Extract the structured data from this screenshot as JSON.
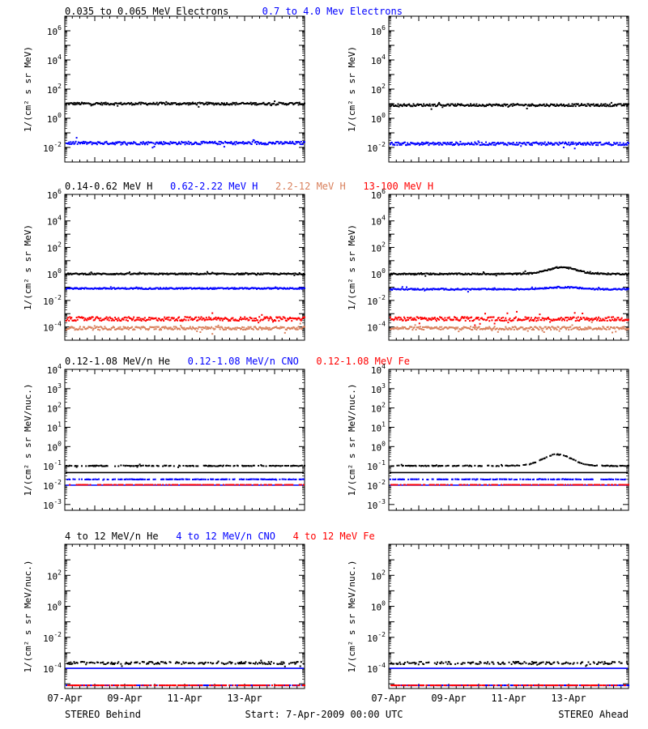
{
  "colors": {
    "black": "#000000",
    "blue": "#0000ff",
    "salmon": "#d9805c",
    "red": "#ff0000"
  },
  "footer": {
    "left": "STEREO Behind",
    "center": "Start:  7-Apr-2009 00:00 UTC",
    "right": "STEREO Ahead"
  },
  "x_tick_labels": [
    "07-Apr",
    "09-Apr",
    "11-Apr",
    "13-Apr"
  ],
  "chart_data": [
    {
      "type": "scatter",
      "row": 1,
      "y_scale": "log",
      "ylabel": "1/(cm² s sr MeV)",
      "ylim": [
        0.001,
        10000000
      ],
      "y_ticks": [
        {
          "exp": -2
        },
        {
          "exp": 0
        },
        {
          "exp": 2
        },
        {
          "exp": 4
        },
        {
          "exp": 6
        }
      ],
      "legend": [
        {
          "text": "0.035 to 0.065 MeV Electrons",
          "color": "black"
        },
        {
          "text": "0.7 to 4.0 Mev Electrons",
          "color": "blue"
        }
      ],
      "panels": {
        "behind": {
          "series": [
            {
              "color": "black",
              "level": 10,
              "spread": 0.08
            },
            {
              "color": "blue",
              "level": 0.02,
              "spread": 0.1
            }
          ]
        },
        "ahead": {
          "series": [
            {
              "color": "black",
              "level": 8,
              "spread": 0.08
            },
            {
              "color": "blue",
              "level": 0.018,
              "spread": 0.1
            }
          ]
        }
      }
    },
    {
      "type": "scatter",
      "row": 2,
      "y_scale": "log",
      "ylabel": "1/(cm² s sr MeV)",
      "ylim": [
        1e-05,
        1000000
      ],
      "y_ticks": [
        {
          "exp": -4
        },
        {
          "exp": -2
        },
        {
          "exp": 0
        },
        {
          "exp": 2
        },
        {
          "exp": 4
        },
        {
          "exp": 6
        }
      ],
      "legend": [
        {
          "text": "0.14-0.62 MeV H",
          "color": "black"
        },
        {
          "text": "0.62-2.22 MeV H",
          "color": "blue"
        },
        {
          "text": "2.2-12 MeV H",
          "color": "salmon"
        },
        {
          "text": "13-100 MeV H",
          "color": "red"
        }
      ],
      "panels": {
        "behind": {
          "series": [
            {
              "color": "black",
              "level": 1.0,
              "spread": 0.05
            },
            {
              "color": "blue",
              "level": 0.08,
              "spread": 0.05
            },
            {
              "color": "red",
              "level": 0.0004,
              "spread": 0.15
            },
            {
              "color": "salmon",
              "level": 8e-05,
              "spread": 0.12
            }
          ]
        },
        "ahead": {
          "series": [
            {
              "color": "black",
              "level": 1.0,
              "spread": 0.05,
              "bump": {
                "x": 0.72,
                "width": 0.12,
                "amp": 0.5
              }
            },
            {
              "color": "blue",
              "level": 0.07,
              "spread": 0.05,
              "bump": {
                "x": 0.72,
                "width": 0.14,
                "amp": 0.15
              }
            },
            {
              "color": "red",
              "level": 0.0004,
              "spread": 0.15
            },
            {
              "color": "salmon",
              "level": 8e-05,
              "spread": 0.12
            }
          ]
        }
      }
    },
    {
      "type": "scatter",
      "row": 3,
      "y_scale": "log",
      "ylabel": "1/(cm² s sr MeV/nuc.)",
      "ylim": [
        0.0005,
        10000
      ],
      "y_ticks": [
        {
          "exp": -3
        },
        {
          "exp": -2
        },
        {
          "exp": -1
        },
        {
          "exp": 0
        },
        {
          "exp": 1
        },
        {
          "exp": 2
        },
        {
          "exp": 3
        },
        {
          "exp": 4
        }
      ],
      "legend": [
        {
          "text": "0.12-1.08 MeV/n He",
          "color": "black"
        },
        {
          "text": "0.12-1.08 MeV/n CNO",
          "color": "blue"
        },
        {
          "text": "0.12-1.08 MeV Fe",
          "color": "red"
        }
      ],
      "panels": {
        "behind": {
          "series": [
            {
              "color": "black",
              "level": 0.1,
              "spread": 0.02,
              "sparse": true
            },
            {
              "color": "black",
              "level": 0.045,
              "spread": 0.0,
              "line": true
            },
            {
              "color": "blue",
              "level": 0.02,
              "spread": 0.01,
              "sparse": true
            },
            {
              "color": "blue",
              "level": 0.01,
              "spread": 0.0,
              "line": true
            },
            {
              "color": "red",
              "level": 0.0105,
              "spread": 0.0,
              "sparse": true
            }
          ]
        },
        "ahead": {
          "series": [
            {
              "color": "black",
              "level": 0.1,
              "spread": 0.02,
              "sparse": true,
              "bump": {
                "x": 0.7,
                "width": 0.12,
                "amp": 0.6
              }
            },
            {
              "color": "black",
              "level": 0.045,
              "spread": 0.0,
              "line": true
            },
            {
              "color": "blue",
              "level": 0.02,
              "spread": 0.01,
              "sparse": true
            },
            {
              "color": "blue",
              "level": 0.01,
              "spread": 0.0,
              "line": true
            },
            {
              "color": "red",
              "level": 0.0105,
              "spread": 0.0,
              "sparse": true
            }
          ]
        }
      }
    },
    {
      "type": "scatter",
      "row": 4,
      "y_scale": "log",
      "ylabel": "1/(cm² s sr MeV/nuc.)",
      "ylim": [
        5e-06,
        10000
      ],
      "y_ticks": [
        {
          "exp": -4
        },
        {
          "exp": -2
        },
        {
          "exp": 0
        },
        {
          "exp": 2
        }
      ],
      "legend": [
        {
          "text": "4 to 12 MeV/n He",
          "color": "black"
        },
        {
          "text": "4 to 12 MeV/n CNO",
          "color": "blue"
        },
        {
          "text": "4 to 12 MeV Fe",
          "color": "red"
        }
      ],
      "panels": {
        "behind": {
          "series": [
            {
              "color": "black",
              "level": 0.00022,
              "spread": 0.08,
              "sparse": true
            },
            {
              "color": "blue",
              "level": 0.0001,
              "spread": 0.0,
              "line": true
            },
            {
              "color": "blue",
              "level": 8e-06,
              "spread": 0.0,
              "sparse": true
            },
            {
              "color": "red",
              "level": 8e-06,
              "spread": 0.0,
              "sparse": true
            }
          ]
        },
        "ahead": {
          "series": [
            {
              "color": "black",
              "level": 0.00022,
              "spread": 0.08,
              "sparse": true
            },
            {
              "color": "blue",
              "level": 0.0001,
              "spread": 0.0,
              "line": true
            },
            {
              "color": "blue",
              "level": 8e-06,
              "spread": 0.0,
              "sparse": true
            },
            {
              "color": "red",
              "level": 8e-06,
              "spread": 0.0,
              "sparse": true
            }
          ]
        }
      }
    }
  ]
}
